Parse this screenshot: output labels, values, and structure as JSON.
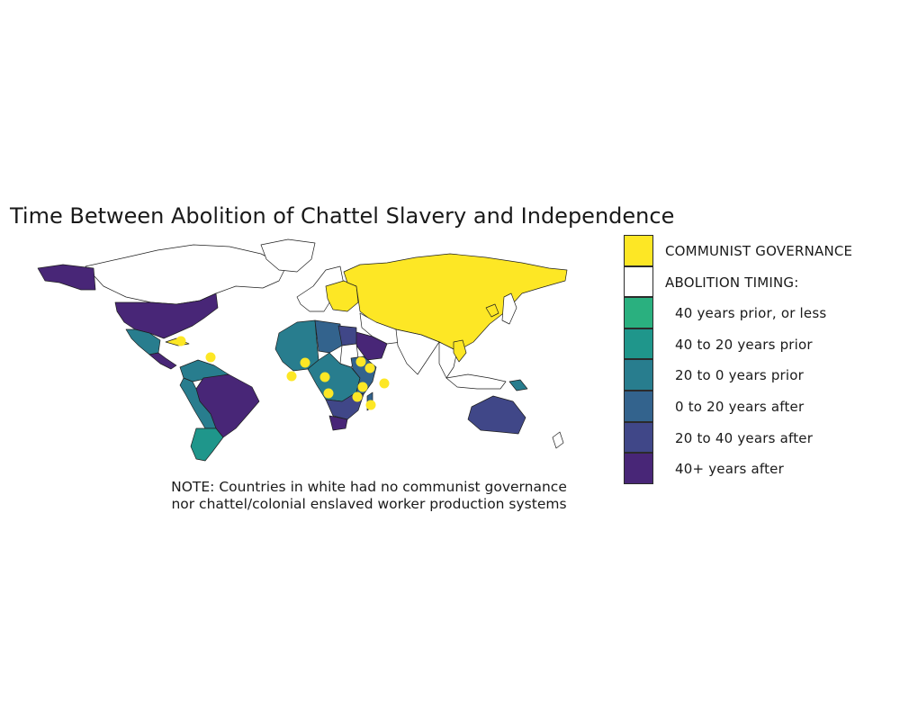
{
  "title": "Time Between Abolition of Chattel Slavery and Independence",
  "note_lines": [
    "NOTE: Countries in white had no communist governance",
    "nor chattel/colonial enslaved worker production systems"
  ],
  "legend": [
    {
      "label": "COMMUNIST GOVERNANCE",
      "color": "#FDE725",
      "kind": "head"
    },
    {
      "label": "ABOLITION TIMING:",
      "color": "#FFFFFF",
      "kind": "head"
    },
    {
      "label": "40 years prior, or less",
      "color": "#2AB07F",
      "kind": "sub"
    },
    {
      "label": "40 to 20 years prior",
      "color": "#1F968B",
      "kind": "sub"
    },
    {
      "label": "20 to 0 years prior",
      "color": "#287D8E",
      "kind": "sub"
    },
    {
      "label": "0 to 20 years after",
      "color": "#33638D",
      "kind": "sub"
    },
    {
      "label": "20 to 40 years after",
      "color": "#404788",
      "kind": "sub"
    },
    {
      "label": "40+ years after",
      "color": "#482677",
      "kind": "sub"
    }
  ],
  "colors": {
    "communist": "#FDE725",
    "none": "#FFFFFF",
    "prior_40_or_less": "#2AB07F",
    "prior_40_20": "#1F968B",
    "prior_20_0": "#287D8E",
    "after_0_20": "#33638D",
    "after_20_40": "#404788",
    "after_40_plus": "#482677"
  },
  "regions": [
    {
      "name": "canada-greenland",
      "category": "none"
    },
    {
      "name": "usa",
      "category": "after_40_plus"
    },
    {
      "name": "alaska",
      "category": "after_40_plus"
    },
    {
      "name": "mexico",
      "category": "prior_20_0"
    },
    {
      "name": "central-america",
      "category": "after_40_plus"
    },
    {
      "name": "cuba",
      "category": "communist"
    },
    {
      "name": "colombia-venezuela",
      "category": "prior_20_0"
    },
    {
      "name": "brazil",
      "category": "after_40_plus"
    },
    {
      "name": "andes",
      "category": "prior_20_0"
    },
    {
      "name": "argentina-chile",
      "category": "prior_40_20"
    },
    {
      "name": "europe-west",
      "category": "none"
    },
    {
      "name": "europe-communist",
      "category": "communist"
    },
    {
      "name": "russia-china",
      "category": "communist"
    },
    {
      "name": "west-africa",
      "category": "prior_20_0"
    },
    {
      "name": "sahara",
      "category": "after_0_20"
    },
    {
      "name": "libya",
      "category": "after_20_40"
    },
    {
      "name": "egypt-sudan",
      "category": "none"
    },
    {
      "name": "arabia",
      "category": "after_40_plus"
    },
    {
      "name": "middle-east",
      "category": "none"
    },
    {
      "name": "central-africa",
      "category": "prior_20_0"
    },
    {
      "name": "east-africa",
      "category": "after_0_20"
    },
    {
      "name": "southern-africa",
      "category": "after_20_40"
    },
    {
      "name": "south-africa",
      "category": "after_40_plus"
    },
    {
      "name": "madagascar",
      "category": "after_0_20"
    },
    {
      "name": "india-south-asia",
      "category": "none"
    },
    {
      "name": "southeast-asia",
      "category": "none"
    },
    {
      "name": "vietnam-laos",
      "category": "communist"
    },
    {
      "name": "north-korea",
      "category": "communist"
    },
    {
      "name": "japan",
      "category": "none"
    },
    {
      "name": "indonesia",
      "category": "none"
    },
    {
      "name": "papua-new-guinea",
      "category": "prior_20_0"
    },
    {
      "name": "australia",
      "category": "after_20_40"
    },
    {
      "name": "new-zealand",
      "category": "none"
    }
  ],
  "markers": [
    {
      "name": "marker-haiti",
      "category": "communist"
    },
    {
      "name": "marker-guyana",
      "category": "communist"
    },
    {
      "name": "marker-benin",
      "category": "communist"
    },
    {
      "name": "marker-congo",
      "category": "communist"
    },
    {
      "name": "marker-cabo-verde",
      "category": "communist"
    },
    {
      "name": "marker-angola",
      "category": "communist"
    },
    {
      "name": "marker-ethiopia",
      "category": "communist"
    },
    {
      "name": "marker-somalia",
      "category": "communist"
    },
    {
      "name": "marker-seychelles",
      "category": "communist"
    },
    {
      "name": "marker-mozambique",
      "category": "communist"
    },
    {
      "name": "marker-madagascar",
      "category": "communist"
    },
    {
      "name": "marker-tanzania",
      "category": "communist"
    }
  ]
}
